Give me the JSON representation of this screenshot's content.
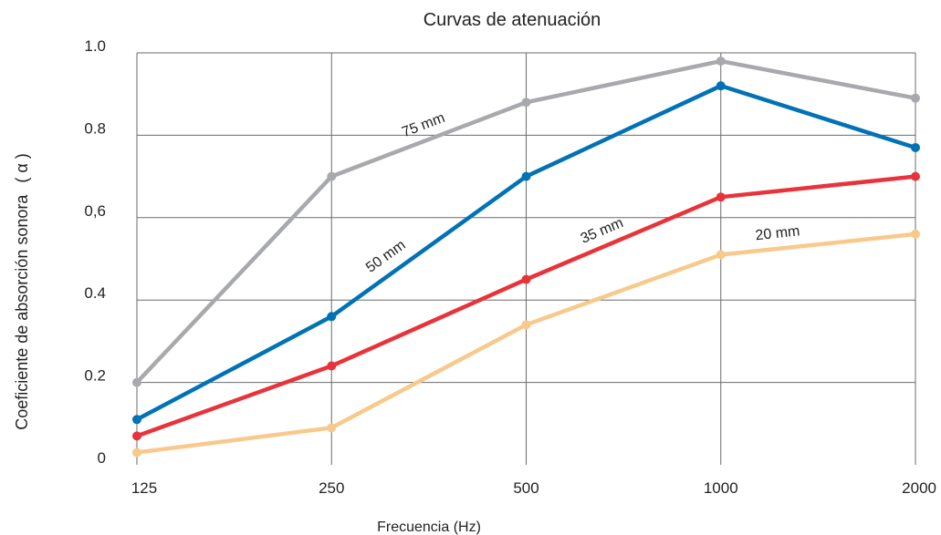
{
  "chart_data": {
    "type": "line",
    "title": "Curvas de atenuación",
    "xlabel": "Frecuencia (Hz)",
    "ylabel": "Coeficiente de absorción sonora",
    "ylabel_symbol": "( α )",
    "categories": [
      "125",
      "250",
      "500",
      "1000",
      "2000"
    ],
    "y_ticks": [
      {
        "value": 0,
        "label": "0"
      },
      {
        "value": 0.2,
        "label": "0.2"
      },
      {
        "value": 0.4,
        "label": "0.4"
      },
      {
        "value": 0.6,
        "label": "0,6"
      },
      {
        "value": 0.8,
        "label": "0.8"
      },
      {
        "value": 1.0,
        "label": "1.0"
      }
    ],
    "ylim": [
      0,
      1.0
    ],
    "grid": true,
    "series": [
      {
        "name": "75 mm",
        "color": "#a7a9ac",
        "values": [
          0.2,
          0.7,
          0.88,
          0.98,
          0.89
        ]
      },
      {
        "name": "50 mm",
        "color": "#0072b5",
        "values": [
          0.11,
          0.36,
          0.7,
          0.92,
          0.77
        ]
      },
      {
        "name": "35 mm",
        "color": "#e8333a",
        "values": [
          0.07,
          0.24,
          0.45,
          0.65,
          0.7
        ]
      },
      {
        "name": "20 mm",
        "color": "#f8c98b",
        "values": [
          0.03,
          0.09,
          0.34,
          0.51,
          0.56
        ]
      }
    ]
  }
}
